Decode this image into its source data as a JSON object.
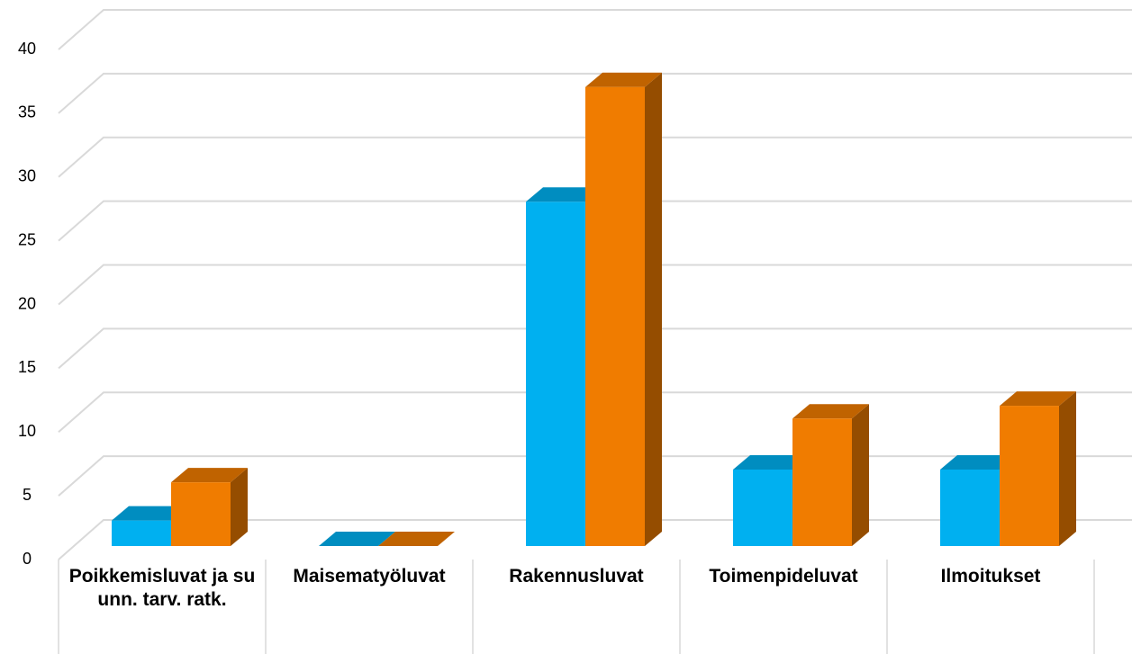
{
  "chart_data": {
    "type": "bar3d",
    "categories": [
      "Poikkemisluvat ja suunn. tarv. ratk.",
      "Maisematyöluvat",
      "Rakennusluvat",
      "Toimenpideluvat",
      "Ilmoitukset"
    ],
    "series": [
      {
        "color": "#00b0f0",
        "values": [
          2,
          0,
          27,
          6,
          6
        ]
      },
      {
        "color": "#f07c00",
        "values": [
          5,
          0,
          36,
          10,
          11
        ]
      }
    ],
    "ylim": [
      0,
      40
    ],
    "yticks": [
      0,
      5,
      10,
      15,
      20,
      25,
      30,
      35,
      40
    ],
    "grid": true
  }
}
